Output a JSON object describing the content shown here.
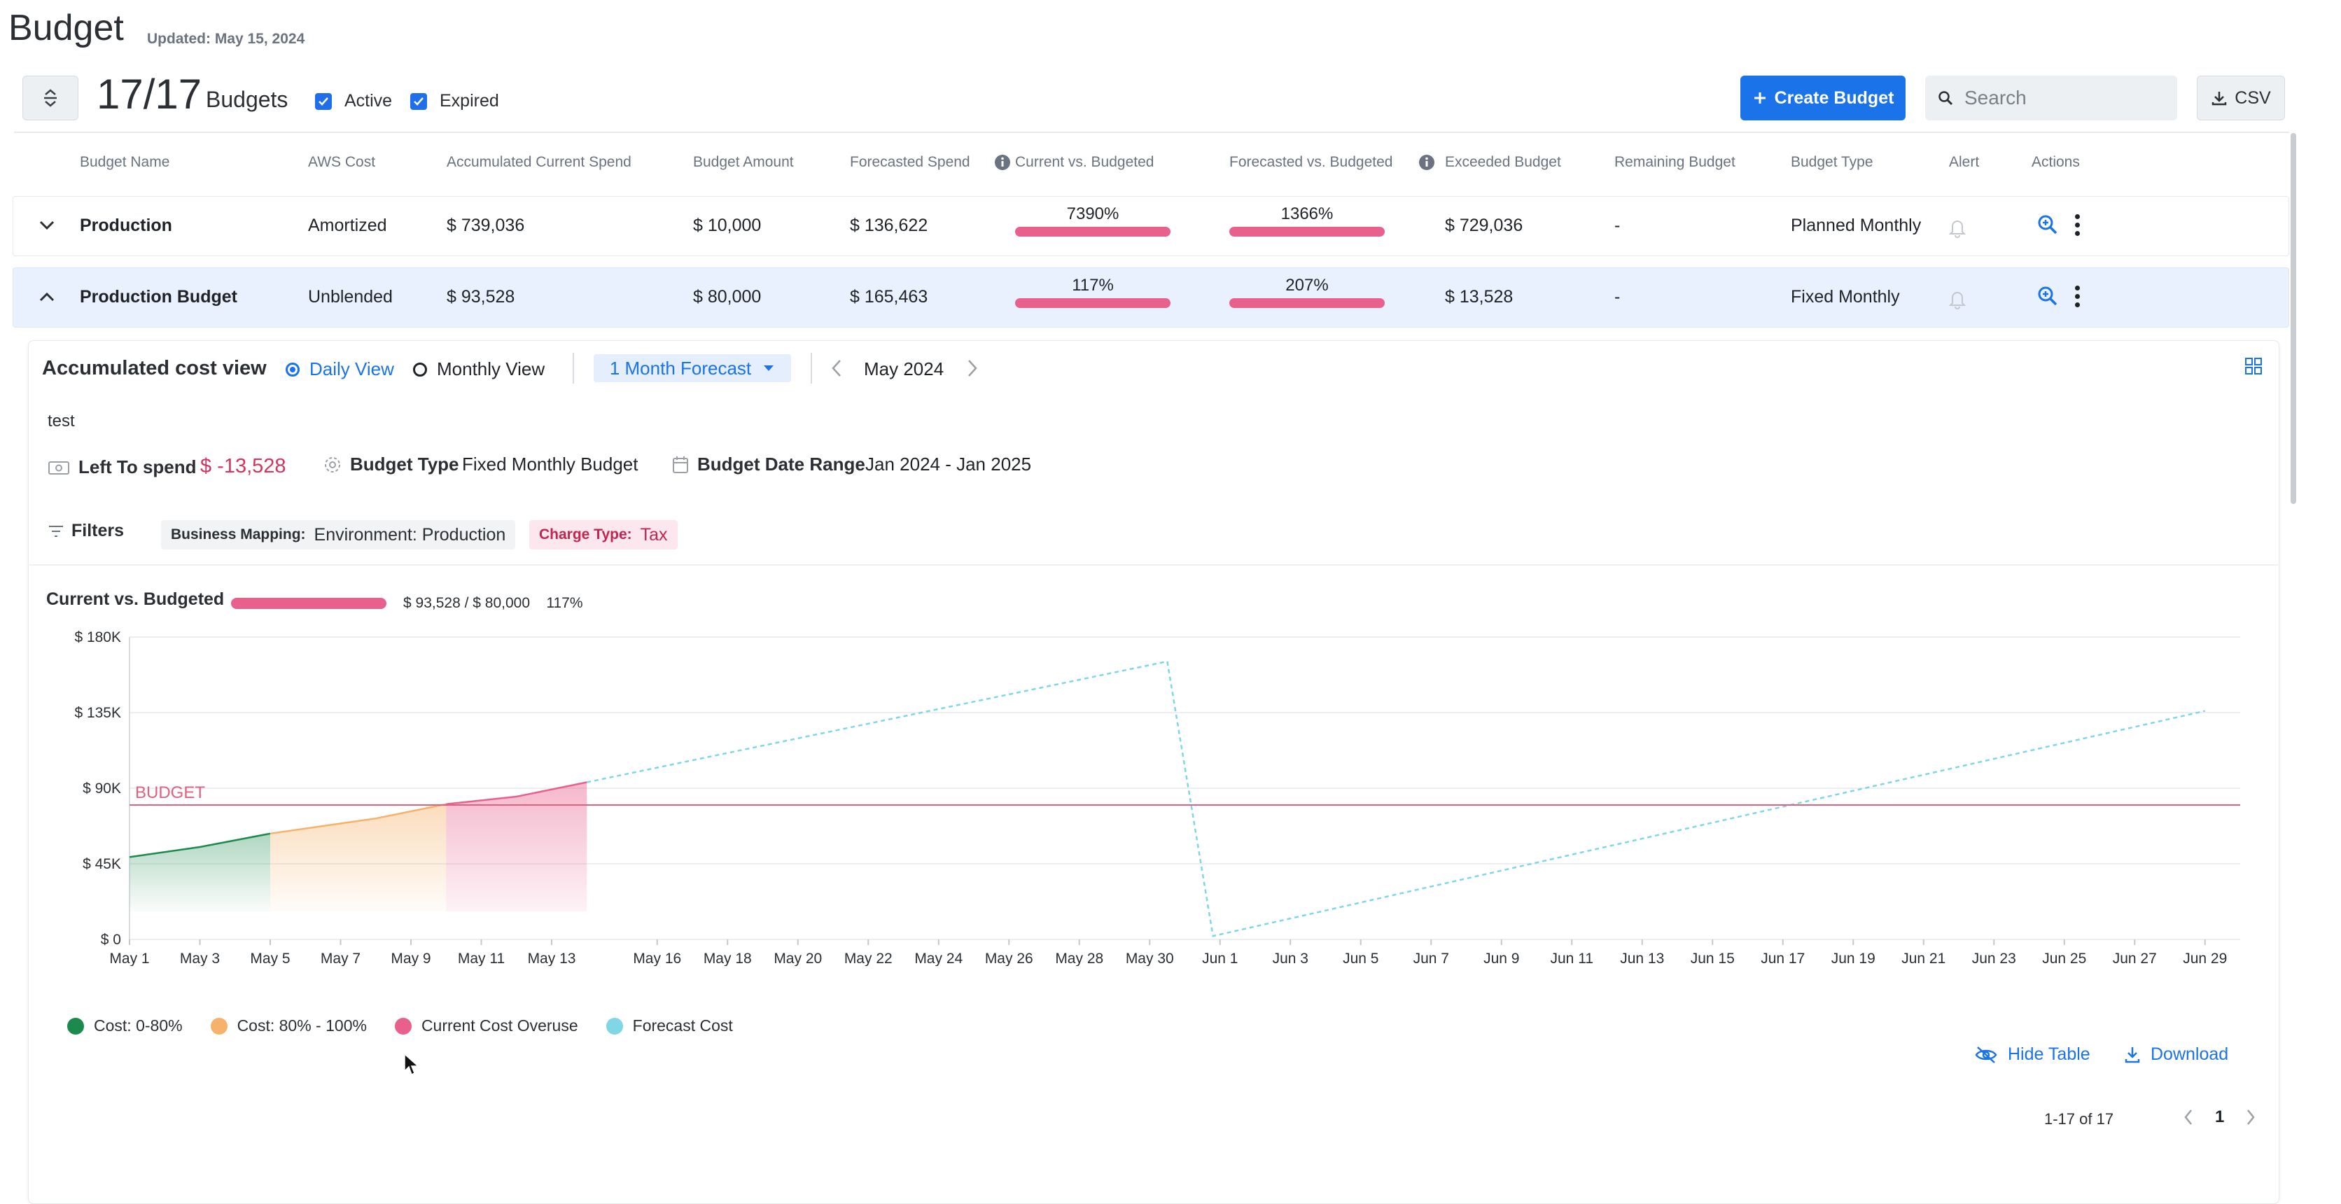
{
  "header": {
    "title": "Budget",
    "updated": "Updated: May 15, 2024"
  },
  "toolbar": {
    "count": "17/17",
    "count_label": "Budgets",
    "active_label": "Active",
    "expired_label": "Expired",
    "create_label": "Create Budget",
    "search_placeholder": "Search",
    "csv_label": "CSV"
  },
  "table": {
    "columns": [
      "Budget Name",
      "AWS Cost",
      "Accumulated Current Spend",
      "Budget Amount",
      "Forecasted Spend",
      "Current vs. Budgeted",
      "Forecasted vs. Budgeted",
      "Exceeded Budget",
      "Remaining Budget",
      "Budget Type",
      "Alert",
      "Actions"
    ],
    "rows": [
      {
        "name": "Production",
        "aws_cost": "Amortized",
        "accumulated": "$ 739,036",
        "budget_amount": "$ 10,000",
        "forecasted": "$ 136,622",
        "current_vs_budgeted": "7390%",
        "current_vs_budgeted_fill": 1.0,
        "forecasted_vs_budgeted": "1366%",
        "forecasted_vs_budgeted_fill": 1.0,
        "exceeded": "$ 729,036",
        "remaining": "-",
        "type": "Planned Monthly"
      },
      {
        "name": "Production Budget",
        "aws_cost": "Unblended",
        "accumulated": "$ 93,528",
        "budget_amount": "$ 80,000",
        "forecasted": "$ 165,463",
        "current_vs_budgeted": "117%",
        "current_vs_budgeted_fill": 1.0,
        "forecasted_vs_budgeted": "207%",
        "forecasted_vs_budgeted_fill": 1.0,
        "exceeded": "$ 13,528",
        "remaining": "-",
        "type": "Fixed Monthly"
      }
    ]
  },
  "detail": {
    "title": "Accumulated cost view",
    "daily_view": "Daily View",
    "monthly_view": "Monthly View",
    "forecast_select": "1 Month Forecast",
    "month": "May 2024",
    "note": "test",
    "left_to_spend_label": "Left To spend",
    "left_to_spend_value": "$ -13,528",
    "budget_type_label": "Budget Type",
    "budget_type_value": "Fixed Monthly Budget",
    "date_range_label": "Budget Date Range",
    "date_range_value": "Jan 2024 - Jan 2025",
    "filters_label": "Filters",
    "filter1_key": "Business Mapping:",
    "filter1_value": "Environment: Production",
    "filter2_key": "Charge Type:",
    "filter2_value": "Tax",
    "cvb_title": "Current vs. Budgeted",
    "cvb_amounts": "$ 93,528 / $ 80,000",
    "cvb_pct": "117%",
    "hide_table": "Hide Table",
    "download": "Download"
  },
  "pager": {
    "range": "1-17 of 17",
    "page": "1"
  },
  "colors": {
    "accent": "#1a73e8",
    "cost_0_80": "#1b8a4c",
    "cost_80_100": "#f6b26b",
    "overuse": "#e8608c",
    "forecast": "#7fd6e4",
    "budget_line": "#e06080"
  },
  "chart_data": {
    "type": "area",
    "title": "Current vs. Budgeted",
    "budget_label": "BUDGET",
    "budget_value": 80000,
    "ylim": [
      0,
      180000
    ],
    "yticks": [
      0,
      45000,
      90000,
      135000,
      180000
    ],
    "ytick_labels": [
      "$ 0",
      "$ 45K",
      "$ 90K",
      "$ 135K",
      "$ 180K"
    ],
    "x_start": "May 1",
    "days": 61,
    "xtick_labels": [
      "May 1",
      "May 3",
      "May 5",
      "May 7",
      "May 9",
      "May 11",
      "May 13",
      "May 16",
      "May 18",
      "May 20",
      "May 22",
      "May 24",
      "May 26",
      "May 28",
      "May 30",
      "Jun 1",
      "Jun 3",
      "Jun 5",
      "Jun 7",
      "Jun 9",
      "Jun 11",
      "Jun 13",
      "Jun 15",
      "Jun 17",
      "Jun 19",
      "Jun 21",
      "Jun 23",
      "Jun 25",
      "Jun 27",
      "Jun 29"
    ],
    "series": [
      {
        "name": "Cost: 0-80%",
        "points": [
          [
            0,
            49000
          ],
          [
            2,
            55000
          ],
          [
            4,
            63000
          ]
        ]
      },
      {
        "name": "Cost: 80% - 100%",
        "points": [
          [
            4,
            63000
          ],
          [
            7,
            72000
          ],
          [
            9,
            80500
          ]
        ]
      },
      {
        "name": "Current Cost Overuse",
        "points": [
          [
            9,
            80500
          ],
          [
            11,
            85000
          ],
          [
            13,
            93528
          ]
        ]
      },
      {
        "name": "Forecast Cost",
        "points": [
          [
            13,
            93528
          ],
          [
            29.5,
            165463
          ],
          [
            30.8,
            2000
          ],
          [
            59,
            136000
          ]
        ]
      }
    ],
    "legend": [
      "Cost: 0-80%",
      "Cost: 80% - 100%",
      "Current Cost Overuse",
      "Forecast Cost"
    ]
  }
}
